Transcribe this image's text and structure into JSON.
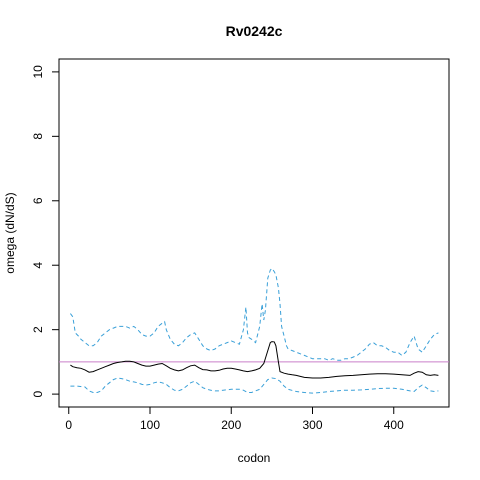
{
  "chart_data": {
    "type": "line",
    "title": "Rv0242c",
    "xlabel": "codon",
    "ylabel": "omega (dN/dS)",
    "xlim": [
      -12,
      468
    ],
    "ylim": [
      -0.4,
      10.4
    ],
    "xticks": [
      0,
      100,
      200,
      300,
      400
    ],
    "yticks": [
      0,
      2,
      4,
      6,
      8,
      10
    ],
    "reference_line": {
      "y": 1,
      "color": "#c97fc9"
    },
    "grid": false,
    "legend": "none",
    "colors": {
      "estimate": "#000000",
      "interval": "#3aa0d8"
    },
    "series": [
      {
        "role": "upper",
        "style": "dashed",
        "x": [
          2,
          5,
          8,
          12,
          15,
          20,
          25,
          30,
          35,
          40,
          45,
          50,
          55,
          60,
          65,
          70,
          75,
          80,
          85,
          90,
          95,
          100,
          105,
          110,
          115,
          118,
          120,
          125,
          130,
          135,
          140,
          145,
          150,
          155,
          160,
          165,
          170,
          175,
          180,
          185,
          190,
          195,
          200,
          205,
          210,
          215,
          218,
          220,
          222,
          225,
          230,
          235,
          238,
          240,
          242,
          245,
          248,
          250,
          253,
          255,
          258,
          260,
          262,
          265,
          268,
          270,
          275,
          280,
          285,
          290,
          295,
          300,
          305,
          310,
          315,
          320,
          325,
          330,
          335,
          340,
          345,
          350,
          355,
          360,
          365,
          370,
          375,
          380,
          385,
          390,
          395,
          400,
          405,
          410,
          415,
          420,
          425,
          430,
          435,
          440,
          445,
          450,
          455
        ],
        "y": [
          2.5,
          2.4,
          1.9,
          1.8,
          1.7,
          1.6,
          1.5,
          1.5,
          1.6,
          1.8,
          1.9,
          2.0,
          2.05,
          2.1,
          2.1,
          2.1,
          2.05,
          2.1,
          2.0,
          1.85,
          1.8,
          1.8,
          1.9,
          2.1,
          2.2,
          2.25,
          2.0,
          1.7,
          1.55,
          1.5,
          1.6,
          1.75,
          1.85,
          1.9,
          1.7,
          1.5,
          1.4,
          1.35,
          1.4,
          1.5,
          1.55,
          1.6,
          1.65,
          1.6,
          1.55,
          2.0,
          2.7,
          1.9,
          1.75,
          1.7,
          1.6,
          2.1,
          2.8,
          2.3,
          2.6,
          3.6,
          3.85,
          3.9,
          3.8,
          3.7,
          3.3,
          2.8,
          2.1,
          1.8,
          1.5,
          1.4,
          1.35,
          1.3,
          1.25,
          1.2,
          1.15,
          1.1,
          1.1,
          1.1,
          1.1,
          1.05,
          1.1,
          1.05,
          1.05,
          1.1,
          1.1,
          1.15,
          1.2,
          1.3,
          1.4,
          1.55,
          1.6,
          1.5,
          1.5,
          1.45,
          1.35,
          1.3,
          1.3,
          1.2,
          1.3,
          1.6,
          1.8,
          1.4,
          1.3,
          1.5,
          1.7,
          1.85,
          1.9
        ]
      },
      {
        "role": "estimate",
        "style": "solid",
        "x": [
          2,
          5,
          10,
          15,
          20,
          25,
          30,
          35,
          40,
          45,
          50,
          55,
          60,
          65,
          70,
          75,
          80,
          85,
          90,
          95,
          100,
          105,
          110,
          115,
          120,
          125,
          130,
          135,
          140,
          145,
          150,
          155,
          160,
          165,
          170,
          175,
          180,
          185,
          190,
          195,
          200,
          205,
          210,
          215,
          220,
          225,
          230,
          235,
          240,
          245,
          248,
          250,
          253,
          255,
          258,
          260,
          265,
          270,
          275,
          280,
          285,
          290,
          300,
          310,
          320,
          330,
          340,
          350,
          360,
          370,
          380,
          390,
          400,
          410,
          420,
          425,
          430,
          435,
          440,
          445,
          450,
          455
        ],
        "y": [
          0.9,
          0.85,
          0.82,
          0.8,
          0.75,
          0.68,
          0.7,
          0.75,
          0.8,
          0.85,
          0.9,
          0.95,
          0.98,
          1.0,
          1.02,
          1.02,
          1.0,
          0.95,
          0.9,
          0.87,
          0.87,
          0.9,
          0.93,
          0.95,
          0.88,
          0.8,
          0.75,
          0.72,
          0.75,
          0.82,
          0.88,
          0.9,
          0.82,
          0.76,
          0.75,
          0.72,
          0.72,
          0.74,
          0.78,
          0.8,
          0.8,
          0.78,
          0.75,
          0.72,
          0.7,
          0.72,
          0.75,
          0.8,
          0.95,
          1.35,
          1.6,
          1.63,
          1.62,
          1.5,
          1.0,
          0.7,
          0.65,
          0.62,
          0.6,
          0.58,
          0.55,
          0.52,
          0.5,
          0.5,
          0.52,
          0.55,
          0.57,
          0.58,
          0.6,
          0.62,
          0.63,
          0.63,
          0.62,
          0.6,
          0.58,
          0.65,
          0.7,
          0.68,
          0.6,
          0.58,
          0.6,
          0.58
        ]
      },
      {
        "role": "lower",
        "style": "dashed",
        "x": [
          2,
          10,
          20,
          25,
          30,
          35,
          40,
          45,
          50,
          55,
          60,
          65,
          70,
          75,
          80,
          85,
          90,
          95,
          100,
          105,
          110,
          115,
          120,
          125,
          130,
          135,
          140,
          145,
          150,
          155,
          160,
          165,
          170,
          175,
          180,
          185,
          190,
          200,
          210,
          215,
          220,
          225,
          230,
          235,
          240,
          245,
          250,
          255,
          260,
          265,
          270,
          280,
          290,
          300,
          310,
          320,
          330,
          340,
          350,
          360,
          370,
          380,
          390,
          400,
          410,
          420,
          425,
          430,
          435,
          440,
          445,
          450,
          455
        ],
        "y": [
          0.25,
          0.25,
          0.22,
          0.1,
          0.05,
          0.05,
          0.1,
          0.25,
          0.35,
          0.45,
          0.5,
          0.48,
          0.45,
          0.4,
          0.38,
          0.35,
          0.3,
          0.28,
          0.3,
          0.35,
          0.38,
          0.35,
          0.3,
          0.2,
          0.12,
          0.1,
          0.15,
          0.25,
          0.35,
          0.4,
          0.3,
          0.2,
          0.15,
          0.12,
          0.1,
          0.1,
          0.12,
          0.15,
          0.15,
          0.12,
          0.05,
          0.05,
          0.1,
          0.15,
          0.3,
          0.45,
          0.5,
          0.48,
          0.4,
          0.25,
          0.15,
          0.08,
          0.05,
          0.03,
          0.05,
          0.08,
          0.1,
          0.12,
          0.12,
          0.13,
          0.15,
          0.17,
          0.18,
          0.18,
          0.15,
          0.1,
          0.08,
          0.2,
          0.28,
          0.2,
          0.1,
          0.08,
          0.1
        ]
      }
    ]
  }
}
